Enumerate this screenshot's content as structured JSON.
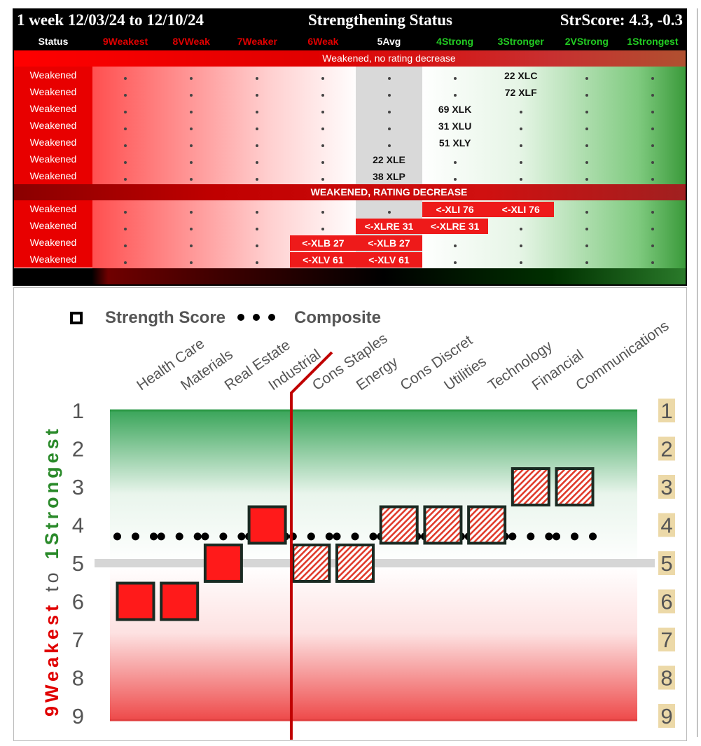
{
  "table": {
    "title_left": "1 week 12/03/24 to 12/10/24",
    "title_center": "Strengthening Status",
    "title_right": "StrScore: 4.3, -0.3",
    "status_header": "Status",
    "columns": [
      {
        "label": "9Weakest",
        "color": "#e00000"
      },
      {
        "label": "8VWeak",
        "color": "#e00000"
      },
      {
        "label": "7Weaker",
        "color": "#e00000"
      },
      {
        "label": "6Weak",
        "color": "#e00000"
      },
      {
        "label": "5Avg",
        "color": "#ffffff"
      },
      {
        "label": "4Strong",
        "color": "#22cc22"
      },
      {
        "label": "3Stronger",
        "color": "#22cc22"
      },
      {
        "label": "2VStrong",
        "color": "#22cc22"
      },
      {
        "label": "1Strongest",
        "color": "#22cc22"
      }
    ],
    "section1_label": "Weakened, no rating decrease",
    "section2_label": "WEAKENED, RATING DECREASE",
    "rows": [
      {
        "status": "Weakened",
        "cells": [
          {
            "col": 6,
            "text": "22 XLC"
          }
        ],
        "dots": [
          0,
          1,
          2,
          3,
          4,
          5,
          7,
          8
        ]
      },
      {
        "status": "Weakened",
        "cells": [
          {
            "col": 6,
            "text": "72 XLF"
          }
        ],
        "dots": [
          0,
          1,
          2,
          3,
          4,
          5,
          7,
          8
        ]
      },
      {
        "status": "Weakened",
        "cells": [
          {
            "col": 5,
            "text": "69 XLK"
          }
        ],
        "dots": [
          0,
          1,
          2,
          3,
          4,
          6,
          7,
          8
        ]
      },
      {
        "status": "Weakened",
        "cells": [
          {
            "col": 5,
            "text": "31 XLU"
          }
        ],
        "dots": [
          0,
          1,
          2,
          3,
          4,
          6,
          7,
          8
        ]
      },
      {
        "status": "Weakened",
        "cells": [
          {
            "col": 5,
            "text": "51 XLY"
          }
        ],
        "dots": [
          0,
          1,
          2,
          3,
          4,
          6,
          7,
          8
        ]
      },
      {
        "status": "Weakened",
        "cells": [
          {
            "col": 4,
            "text": "22 XLE"
          }
        ],
        "dots": [
          0,
          1,
          2,
          3,
          5,
          6,
          7,
          8
        ]
      },
      {
        "status": "Weakened",
        "cells": [
          {
            "col": 4,
            "text": "38 XLP"
          }
        ],
        "dots": [
          0,
          1,
          2,
          3,
          5,
          6,
          7,
          8
        ]
      },
      {
        "status": "Weakened",
        "cells": [
          {
            "col": 5,
            "text": "<-XLI 76",
            "red": true
          },
          {
            "col": 6,
            "text": "<-XLI 76",
            "red": true
          }
        ],
        "dots": [
          0,
          1,
          2,
          3,
          4,
          7,
          8
        ]
      },
      {
        "status": "Weakened",
        "cells": [
          {
            "col": 4,
            "text": "<-XLRE 31",
            "red": true
          },
          {
            "col": 5,
            "text": "<-XLRE 31",
            "red": true
          }
        ],
        "dots": [
          0,
          1,
          2,
          3,
          6,
          7,
          8
        ]
      },
      {
        "status": "Weakened",
        "cells": [
          {
            "col": 3,
            "text": "<-XLB 27",
            "red": true
          },
          {
            "col": 4,
            "text": "<-XLB 27",
            "red": true
          }
        ],
        "dots": [
          0,
          1,
          2,
          5,
          6,
          7,
          8
        ]
      },
      {
        "status": "Weakened",
        "cells": [
          {
            "col": 3,
            "text": "<-XLV 61",
            "red": true
          },
          {
            "col": 4,
            "text": "<-XLV 61",
            "red": true
          }
        ],
        "dots": [
          0,
          1,
          2,
          5,
          6,
          7,
          8
        ]
      }
    ]
  },
  "chart_data": {
    "type": "scatter",
    "legend": {
      "series1": "Strength Score",
      "series2": "Composite",
      "placement": "top-left"
    },
    "categories": [
      "Health Care",
      "Materials",
      "Real Estate",
      "Industrial",
      "Cons Staples",
      "Energy",
      "Cons Discret",
      "Utilities",
      "Technology",
      "Financial",
      "Communications"
    ],
    "series": [
      {
        "name": "Strength Score",
        "values": [
          6,
          6,
          5,
          4,
          5,
          5,
          4,
          4,
          4,
          3,
          3
        ],
        "style": [
          "solid",
          "solid",
          "solid",
          "solid",
          "hatched",
          "hatched",
          "hatched",
          "hatched",
          "hatched",
          "hatched",
          "hatched"
        ]
      },
      {
        "name": "Composite",
        "values": [
          4.3,
          4.3,
          4.3,
          4.3,
          4.3,
          4.3,
          4.3,
          4.3,
          4.3,
          4.3,
          4.3
        ]
      }
    ],
    "ylabel_top": "1Strongest",
    "ylabel_mid": "to",
    "ylabel_bottom": "9Weakest",
    "yticks": [
      "1",
      "2",
      "3",
      "4",
      "5",
      "6",
      "7",
      "8",
      "9"
    ],
    "ylim": [
      1,
      9
    ],
    "y_inverted": true,
    "midline": 5,
    "divider_after_category": "Industrial",
    "colors": {
      "strong": "#1f9a3a",
      "weak": "#e8322f",
      "box": "#ff1a1a",
      "border": "#1a2a22",
      "divider": "#c00000",
      "right_tick_bg": "#ecd9a8"
    }
  }
}
